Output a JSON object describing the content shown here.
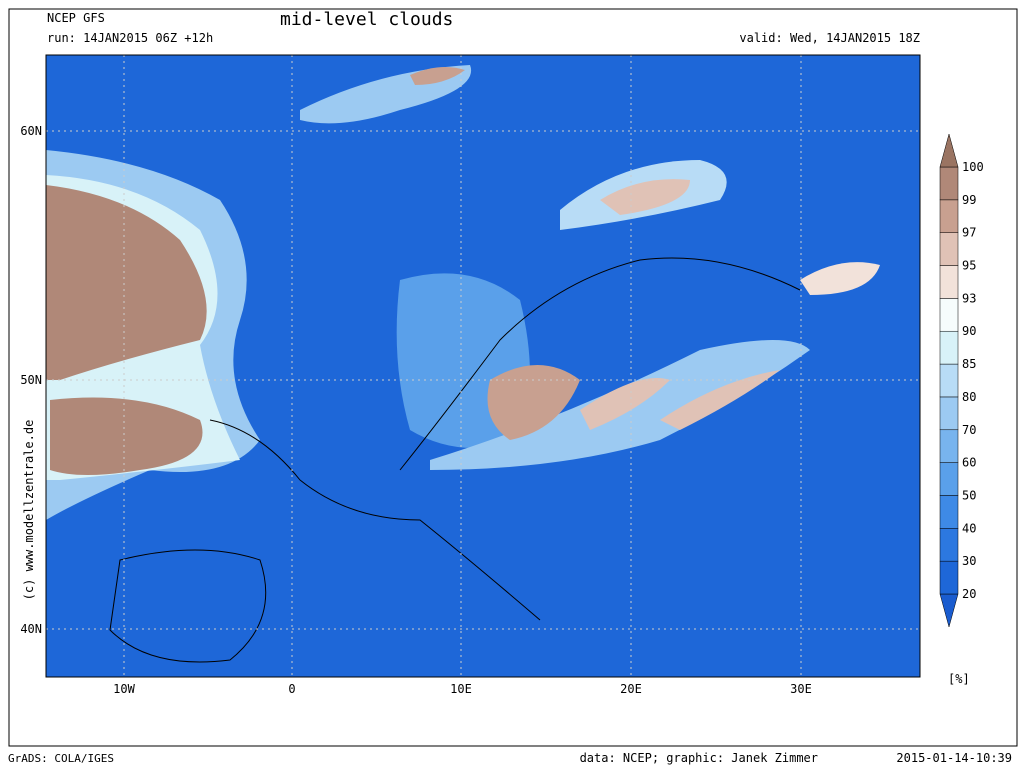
{
  "header": {
    "model": "NCEP GFS",
    "run": "run: 14JAN2015 06Z +12h",
    "title": "mid-level clouds",
    "valid": "valid: Wed, 14JAN2015 18Z"
  },
  "map": {
    "lon_labels": [
      "10W",
      "0",
      "10E",
      "20E",
      "30E"
    ],
    "lat_labels": [
      "60N",
      "50N",
      "40N"
    ],
    "watermark": "(c) www.modellzentrale.de"
  },
  "colorbar": {
    "levels": [
      20,
      30,
      40,
      50,
      60,
      70,
      80,
      85,
      90,
      93,
      95,
      97,
      99,
      100
    ],
    "colors": [
      "#1a5ccf",
      "#1e67d8",
      "#2c78e0",
      "#3e8ae6",
      "#5aa0ea",
      "#78b4ee",
      "#9ccaf2",
      "#b8dcf6",
      "#d8f2f8",
      "#f6fcfc",
      "#f2e2da",
      "#e0c2b6",
      "#c8a090",
      "#b08878",
      "#9a7462"
    ],
    "unit": "[%]"
  },
  "footer": {
    "software": "GrADS: COLA/IGES",
    "credit": "data: NCEP; graphic: Janek Zimmer",
    "timestamp": "2015-01-14-10:39"
  }
}
